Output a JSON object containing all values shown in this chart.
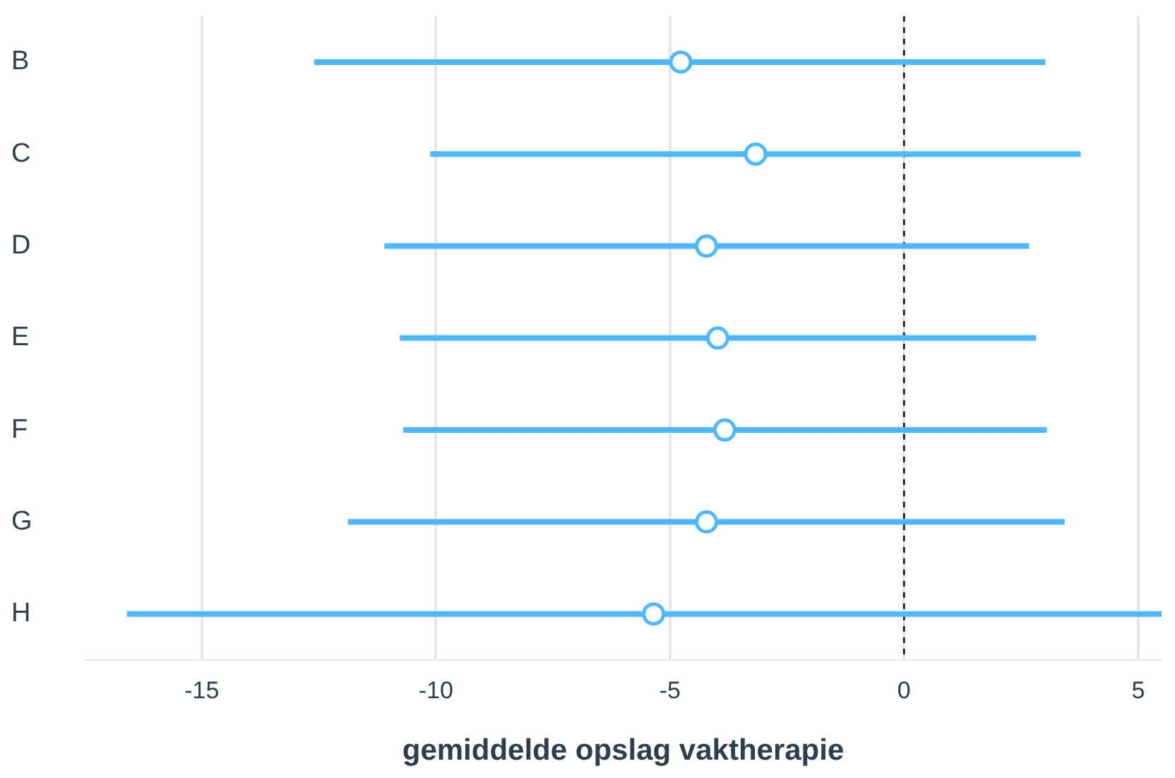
{
  "chart_data": {
    "type": "scatter",
    "orientation": "horizontal",
    "xlabel": "gemiddelde opslag vaktherapie",
    "categories": [
      "B",
      "C",
      "D",
      "E",
      "F",
      "G",
      "H"
    ],
    "values": [
      -4.77,
      -3.17,
      -4.22,
      -3.98,
      -3.83,
      -4.22,
      -5.35
    ],
    "errors": [
      [
        -12.6,
        3.02
      ],
      [
        -10.12,
        3.77
      ],
      [
        -11.1,
        2.67
      ],
      [
        -10.77,
        2.82
      ],
      [
        -10.7,
        3.05
      ],
      [
        -11.88,
        3.43
      ],
      [
        -16.6,
        5.5
      ]
    ],
    "color": "#4db8ff",
    "marker": "circle",
    "xlim": [
      -17.5,
      5.5
    ],
    "xticks": [
      -15,
      -10,
      -5,
      0,
      5
    ],
    "grid": "x",
    "ref_lines": [
      {
        "axis": "x",
        "value": 0,
        "color": "#000000",
        "line_style": "dashed"
      }
    ]
  }
}
